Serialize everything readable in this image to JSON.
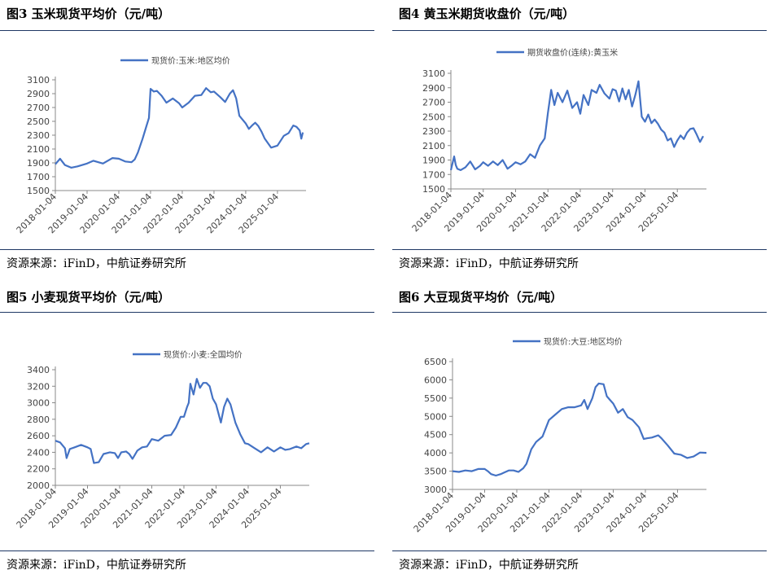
{
  "page": {
    "source_text": "资源来源：iFinD，中航证券研究所"
  },
  "chart_data": [
    {
      "id": "p3",
      "figure_title": "图3  玉米现货平均价（元/吨）",
      "type": "line",
      "legend": "现货价:玉米:地区均价",
      "legend_position": "top",
      "line_color": "#4472c4",
      "ylim": [
        1500,
        3100
      ],
      "yticks": [
        1500,
        1700,
        1900,
        2100,
        2300,
        2500,
        2700,
        2900,
        3100
      ],
      "xticks": [
        "2018-01-04",
        "2019-01-04",
        "2020-01-04",
        "2021-01-04",
        "2022-01-04",
        "2023-01-04",
        "2024-01-04",
        "2025-01-04"
      ],
      "xlim": [
        2018.0,
        2025.9
      ],
      "grid": false,
      "series": [
        {
          "x": [
            2018.0,
            2018.15,
            2018.3,
            2018.5,
            2018.7,
            2019.0,
            2019.2,
            2019.5,
            2019.8,
            2020.0,
            2020.2,
            2020.4,
            2020.5,
            2020.6,
            2020.75,
            2020.85,
            2020.95,
            2021.0,
            2021.1,
            2021.2,
            2021.35,
            2021.5,
            2021.7,
            2021.9,
            2022.0,
            2022.2,
            2022.4,
            2022.6,
            2022.75,
            2022.9,
            2023.0,
            2023.2,
            2023.35,
            2023.5,
            2023.6,
            2023.7,
            2023.8,
            2024.0,
            2024.1,
            2024.2,
            2024.3,
            2024.4,
            2024.5,
            2024.6,
            2024.8,
            2025.0,
            2025.2,
            2025.35,
            2025.5,
            2025.6,
            2025.7,
            2025.75,
            2025.8
          ],
          "values": [
            1880,
            1960,
            1870,
            1830,
            1850,
            1890,
            1930,
            1890,
            1970,
            1960,
            1920,
            1910,
            1950,
            2050,
            2250,
            2400,
            2550,
            2970,
            2930,
            2940,
            2870,
            2770,
            2830,
            2760,
            2700,
            2770,
            2870,
            2880,
            2980,
            2920,
            2930,
            2850,
            2780,
            2900,
            2950,
            2830,
            2580,
            2470,
            2390,
            2440,
            2480,
            2430,
            2350,
            2250,
            2120,
            2150,
            2290,
            2330,
            2440,
            2420,
            2370,
            2250,
            2340
          ]
        }
      ]
    },
    {
      "id": "p4",
      "figure_title": "图4  黄玉米期货收盘价（元/吨）",
      "type": "line",
      "legend": "期货收盘价(连续):黄玉米",
      "legend_position": "top",
      "line_color": "#4472c4",
      "ylim": [
        1500,
        3100
      ],
      "yticks": [
        1500,
        1700,
        1900,
        2100,
        2300,
        2500,
        2700,
        2900,
        3100
      ],
      "xticks": [
        "2018-01-04",
        "2019-01-04",
        "2020-01-04",
        "2021-01-04",
        "2022-01-04",
        "2023-01-04",
        "2024-01-04",
        "2025-01-04"
      ],
      "xlim": [
        2018.0,
        2025.9
      ],
      "grid": false,
      "series": [
        {
          "x": [
            2018.0,
            2018.1,
            2018.15,
            2018.2,
            2018.3,
            2018.45,
            2018.6,
            2018.75,
            2018.9,
            2019.0,
            2019.15,
            2019.3,
            2019.45,
            2019.6,
            2019.75,
            2019.9,
            2020.0,
            2020.15,
            2020.3,
            2020.45,
            2020.6,
            2020.75,
            2020.9,
            2021.0,
            2021.1,
            2021.2,
            2021.3,
            2021.45,
            2021.6,
            2021.75,
            2021.9,
            2022.0,
            2022.1,
            2022.25,
            2022.35,
            2022.5,
            2022.6,
            2022.75,
            2022.9,
            2023.0,
            2023.1,
            2023.2,
            2023.3,
            2023.4,
            2023.5,
            2023.6,
            2023.7,
            2023.8,
            2023.9,
            2024.0,
            2024.1,
            2024.2,
            2024.3,
            2024.4,
            2024.5,
            2024.6,
            2024.7,
            2024.8,
            2024.9,
            2025.0,
            2025.1,
            2025.2,
            2025.3,
            2025.4,
            2025.5,
            2025.6,
            2025.7,
            2025.8
          ],
          "values": [
            1760,
            1950,
            1830,
            1780,
            1760,
            1800,
            1880,
            1770,
            1820,
            1870,
            1820,
            1880,
            1830,
            1900,
            1780,
            1830,
            1870,
            1840,
            1880,
            1980,
            1930,
            2100,
            2200,
            2550,
            2870,
            2660,
            2830,
            2700,
            2860,
            2620,
            2700,
            2540,
            2800,
            2660,
            2870,
            2830,
            2940,
            2820,
            2750,
            2880,
            2860,
            2710,
            2890,
            2740,
            2870,
            2640,
            2800,
            2990,
            2500,
            2430,
            2530,
            2410,
            2460,
            2400,
            2320,
            2280,
            2170,
            2200,
            2080,
            2170,
            2240,
            2190,
            2280,
            2330,
            2340,
            2250,
            2150,
            2230
          ]
        }
      ]
    },
    {
      "id": "p5",
      "figure_title": "图5  小麦现货平均价（元/吨）",
      "type": "line",
      "legend": "现货价:小麦:全国均价",
      "legend_position": "top",
      "line_color": "#4472c4",
      "ylim": [
        2000,
        3400
      ],
      "yticks": [
        2000,
        2200,
        2400,
        2600,
        2800,
        3000,
        3200,
        3400
      ],
      "xticks": [
        "2018-01-04",
        "2019-01-04",
        "2020-01-04",
        "2021-01-04",
        "2022-01-04",
        "2023-01-04",
        "2024-01-04",
        "2025-01-04"
      ],
      "xlim": [
        2018.0,
        2025.9
      ],
      "grid": false,
      "series": [
        {
          "x": [
            2018.0,
            2018.15,
            2018.3,
            2018.35,
            2018.45,
            2018.6,
            2018.8,
            2019.0,
            2019.1,
            2019.2,
            2019.35,
            2019.5,
            2019.7,
            2019.85,
            2019.95,
            2020.05,
            2020.2,
            2020.3,
            2020.4,
            2020.55,
            2020.7,
            2020.85,
            2021.0,
            2021.2,
            2021.4,
            2021.6,
            2021.75,
            2021.9,
            2022.0,
            2022.1,
            2022.15,
            2022.2,
            2022.3,
            2022.4,
            2022.5,
            2022.6,
            2022.7,
            2022.8,
            2022.9,
            2023.0,
            2023.15,
            2023.25,
            2023.35,
            2023.45,
            2023.6,
            2023.75,
            2023.9,
            2024.0,
            2024.2,
            2024.4,
            2024.6,
            2024.8,
            2025.0,
            2025.15,
            2025.3,
            2025.5,
            2025.65,
            2025.8,
            2025.9
          ],
          "values": [
            2540,
            2520,
            2450,
            2330,
            2440,
            2460,
            2490,
            2460,
            2440,
            2270,
            2280,
            2380,
            2400,
            2390,
            2330,
            2400,
            2410,
            2380,
            2320,
            2420,
            2460,
            2470,
            2560,
            2540,
            2600,
            2610,
            2700,
            2830,
            2830,
            2950,
            3000,
            3230,
            3100,
            3290,
            3180,
            3240,
            3240,
            3200,
            3050,
            2980,
            2760,
            2950,
            3050,
            2980,
            2760,
            2620,
            2510,
            2500,
            2450,
            2400,
            2460,
            2410,
            2460,
            2430,
            2440,
            2470,
            2450,
            2500,
            2510
          ]
        }
      ]
    },
    {
      "id": "p6",
      "figure_title": "图6  大豆现货平均价（元/吨）",
      "type": "line",
      "legend": "现货价:大豆:地区均价",
      "legend_position": "top",
      "line_color": "#4472c4",
      "ylim": [
        3000,
        6500
      ],
      "yticks": [
        3000,
        3500,
        4000,
        4500,
        5000,
        5500,
        6000,
        6500
      ],
      "xticks": [
        "2018-01-04",
        "2019-01-04",
        "2020-01-04",
        "2021-01-04",
        "2022-01-04",
        "2023-01-04",
        "2024-01-04",
        "2025-01-04"
      ],
      "xlim": [
        2018.0,
        2025.9
      ],
      "grid": false,
      "series": [
        {
          "x": [
            2018.0,
            2018.2,
            2018.4,
            2018.6,
            2018.8,
            2019.0,
            2019.1,
            2019.2,
            2019.35,
            2019.5,
            2019.6,
            2019.75,
            2019.9,
            2020.05,
            2020.2,
            2020.3,
            2020.45,
            2020.6,
            2020.8,
            2021.0,
            2021.2,
            2021.4,
            2021.6,
            2021.8,
            2022.0,
            2022.1,
            2022.2,
            2022.35,
            2022.45,
            2022.55,
            2022.7,
            2022.8,
            2022.9,
            2023.0,
            2023.15,
            2023.3,
            2023.45,
            2023.6,
            2023.8,
            2023.95,
            2024.05,
            2024.2,
            2024.4,
            2024.5,
            2024.7,
            2024.9,
            2025.1,
            2025.3,
            2025.5,
            2025.7,
            2025.9
          ],
          "values": [
            3500,
            3480,
            3520,
            3500,
            3560,
            3560,
            3500,
            3420,
            3380,
            3420,
            3460,
            3520,
            3520,
            3480,
            3580,
            3700,
            4100,
            4300,
            4450,
            4900,
            5050,
            5200,
            5250,
            5250,
            5300,
            5450,
            5200,
            5500,
            5800,
            5900,
            5880,
            5550,
            5450,
            5350,
            5100,
            5200,
            4980,
            4900,
            4700,
            4380,
            4400,
            4420,
            4480,
            4400,
            4200,
            3980,
            3950,
            3860,
            3900,
            4010,
            4000
          ]
        }
      ]
    }
  ]
}
